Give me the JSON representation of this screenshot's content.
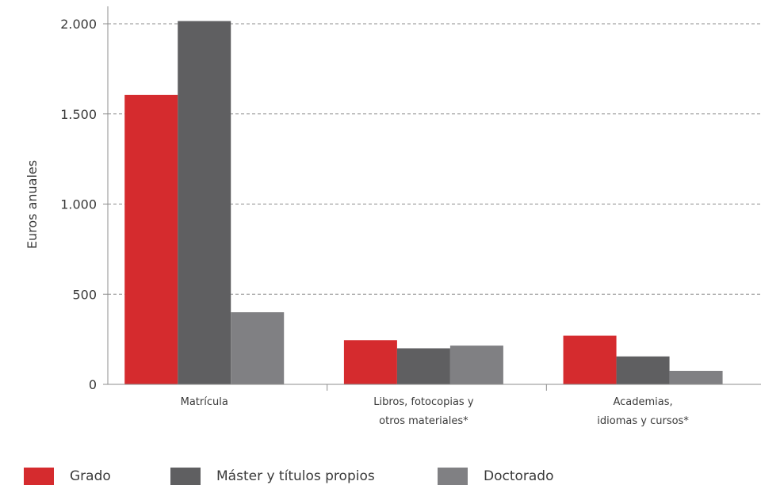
{
  "chart_data": {
    "type": "bar",
    "ylabel": "Euros anuales",
    "ylim": [
      0,
      2000
    ],
    "yticks": [
      {
        "value": 0,
        "label": "0"
      },
      {
        "value": 500,
        "label": "500"
      },
      {
        "value": 1000,
        "label": "1.000"
      },
      {
        "value": 1500,
        "label": "1.500"
      },
      {
        "value": 2000,
        "label": "2.000"
      }
    ],
    "grid": "horizontal-dashed",
    "legend_placement": "bottom-left",
    "categories": [
      [
        "Matrícula"
      ],
      [
        "Libros, fotocopias y",
        "otros materiales*"
      ],
      [
        "Academias,",
        "idiomas y cursos*"
      ]
    ],
    "series": [
      {
        "name": "Grado",
        "color": "#d52b2e",
        "values": [
          1605,
          245,
          270
        ]
      },
      {
        "name": "Máster y títulos propios",
        "color": "#5f5f61",
        "values": [
          2015,
          200,
          155
        ]
      },
      {
        "name": "Doctorado",
        "color": "#808083",
        "values": [
          400,
          215,
          75
        ]
      }
    ]
  }
}
